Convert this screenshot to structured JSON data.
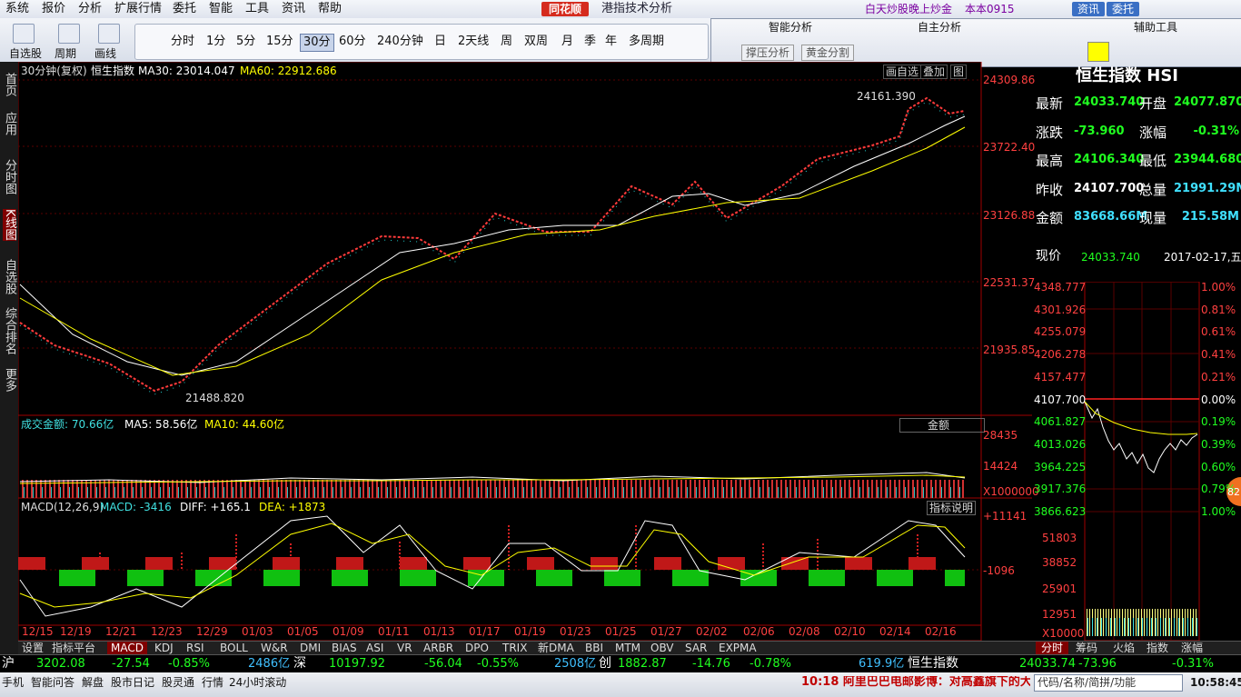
{
  "menu": [
    "系统",
    "报价",
    "分析",
    "扩展行情",
    "委托",
    "智能",
    "工具",
    "资讯",
    "帮助"
  ],
  "logo": "同花顺",
  "app_title": "港指技术分析",
  "promo": "白天炒股晚上炒金",
  "account": "本本0915",
  "top_buttons": [
    "资讯",
    "委托"
  ],
  "toolbar": {
    "tools": [
      "自选股",
      "周期",
      "画线"
    ],
    "periods": [
      "分时",
      "1分",
      "5分",
      "15分",
      "30分",
      "60分",
      "240分钟",
      "日",
      "2天线",
      "周",
      "双周",
      "月",
      "季",
      "年",
      "多周期"
    ],
    "active_period": 4,
    "smart_analysis": {
      "title": "智能分析",
      "buttons": [
        "撑压分析",
        "黄金分割"
      ]
    },
    "self_analysis": "自主分析",
    "aux_tools": "辅助工具"
  },
  "sidebar": [
    "首页",
    "应用",
    "分时图",
    "K线图",
    "自选股",
    "综合排名",
    "更多"
  ],
  "active_sidebar": 3,
  "kline": {
    "period": "30分钟(复权)",
    "name": "恒生指数",
    "ma30": "MA30: 23014.047",
    "ma60": "MA60: 22912.686",
    "links": [
      "画自选",
      "叠加",
      "图"
    ],
    "price_axis": [
      "24309.86",
      "23722.40",
      "23126.88",
      "22531.37",
      "21935.85"
    ],
    "high_note": "24161.390",
    "low_note": "21488.820"
  },
  "volume": {
    "amount": "成交金额: 70.66亿",
    "ma5": "MA5: 58.56亿",
    "ma10": "MA10: 44.60亿",
    "selector": "金额",
    "axis": [
      "28435",
      "14424",
      "X1000000"
    ]
  },
  "macd": {
    "name": "MACD(12,26,9)",
    "macd": "MACD: -3416",
    "diff": "DIFF: +165.1",
    "dea": "DEA: +1873",
    "help": "指标说明",
    "axis": [
      "+11141",
      "-1096"
    ]
  },
  "dates": [
    "12/15",
    "12/19",
    "12/21",
    "12/23",
    "12/29",
    "01/03",
    "01/05",
    "01/09",
    "01/11",
    "01/13",
    "01/17",
    "01/19",
    "01/23",
    "01/25",
    "01/27",
    "02/02",
    "02/06",
    "02/08",
    "02/10",
    "02/14",
    "02/16"
  ],
  "indicator_tabs": [
    "设置",
    "指标平台",
    "MACD",
    "KDJ",
    "RSI",
    "BOLL",
    "W&R",
    "DMI",
    "BIAS",
    "ASI",
    "VR",
    "ARBR",
    "DPO",
    "TRIX",
    "新DMA",
    "BBI",
    "MTM",
    "OBV",
    "SAR",
    "EXPMA"
  ],
  "active_tab": 2,
  "quote": {
    "title": "恒生指数 HSI",
    "rows": [
      [
        "最新",
        "24033.740",
        "开盘",
        "24077.870"
      ],
      [
        "涨跌",
        "-73.960",
        "涨幅",
        "-0.31%"
      ],
      [
        "最高",
        "24106.340",
        "最低",
        "23944.680"
      ],
      [
        "昨收",
        "24107.700",
        "总量",
        "21991.29M"
      ],
      [
        "金额",
        "83668.66M",
        "现量",
        "215.58M"
      ]
    ],
    "now_label": "现价",
    "now_value": "24033.740",
    "date": "2017-02-17,五",
    "price_axis": [
      "4348.777",
      "4301.926",
      "4255.079",
      "4206.278",
      "4157.477",
      "4107.700",
      "4061.827",
      "4013.026",
      "3964.225",
      "3917.376",
      "3866.623"
    ],
    "pct_axis": [
      "1.00%",
      "0.81%",
      "0.61%",
      "0.41%",
      "0.21%",
      "0.00%",
      "0.19%",
      "0.39%",
      "0.60%",
      "0.79%",
      "1.00%"
    ],
    "volume_axis": [
      "51803",
      "38852",
      "25901",
      "12951",
      "X10000"
    ],
    "badge": "82",
    "tabs": [
      "分时",
      "筹码",
      "火焰",
      "指数",
      "涨幅"
    ]
  },
  "status": [
    {
      "name": "沪",
      "price": "3202.08",
      "change": "-27.54",
      "pct": "-0.85%",
      "amount": "2486亿"
    },
    {
      "name": "深",
      "price": "10197.92",
      "change": "-56.04",
      "pct": "-0.55%",
      "amount": "2508亿"
    },
    {
      "name": "创",
      "price": "1882.87",
      "change": "-14.76",
      "pct": "-0.78%",
      "amount": "619.9亿"
    },
    {
      "name": "恒生指数",
      "price": "24033.74",
      "change": "-73.96",
      "pct": "-0.31%"
    }
  ],
  "footer": {
    "links": [
      "手机",
      "智能问答",
      "解盘",
      "股市日记",
      "股灵通",
      "行情",
      "24小时滚动"
    ],
    "news": "10:18 阿里巴巴电邮影博：对高鑫旗下的大润",
    "search": "代码/名称/简拼/功能",
    "time": "10:58:45"
  }
}
